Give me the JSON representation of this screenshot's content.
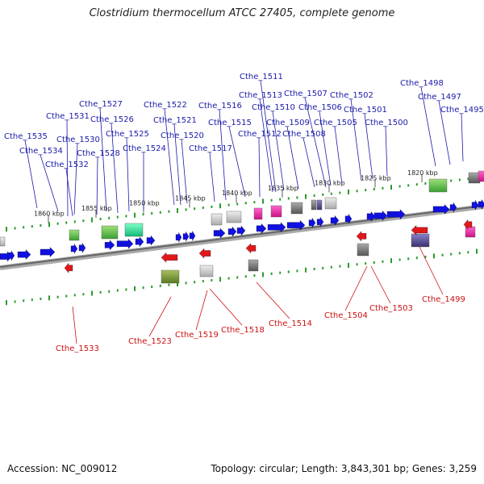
{
  "title": "Clostridium thermocellum ATCC 27405, complete genome",
  "footer": {
    "accession": "Accession: NC_009012",
    "topology": "Topology: circular; Length: 3,843,301 bp; Genes: 3,259"
  },
  "scale_labels": [
    "1860 kbp",
    "1855 kbp",
    "1850 kbp",
    "1845 kbp",
    "1840 kbp",
    "1835 kbp",
    "1830 kbp",
    "1825 kbp",
    "1820 kbp"
  ],
  "forward_labels": [
    "Cthe_1535",
    "Cthe_1534",
    "Cthe_1532",
    "Cthe_1531",
    "Cthe_1530",
    "Cthe_1528",
    "Cthe_1527",
    "Cthe_1526",
    "Cthe_1525",
    "Cthe_1524",
    "Cthe_1522",
    "Cthe_1521",
    "Cthe_1520",
    "Cthe_1517",
    "Cthe_1516",
    "Cthe_1515",
    "Cthe_1513",
    "Cthe_1512",
    "Cthe_1511",
    "Cthe_1510",
    "Cthe_1509",
    "Cthe_1508",
    "Cthe_1507",
    "Cthe_1506",
    "Cthe_1505",
    "Cthe_1502",
    "Cthe_1501",
    "Cthe_1500",
    "Cthe_1498",
    "Cthe_1497",
    "Cthe_1495"
  ],
  "reverse_labels": [
    "Cthe_1533",
    "Cthe_1523",
    "Cthe_1519",
    "Cthe_1518",
    "Cthe_1514",
    "Cthe_1504",
    "Cthe_1503",
    "Cthe_1499"
  ],
  "colors": {
    "forward_cds": "#1010e0",
    "reverse_cds": "#e01818",
    "forward_label": "#1a1aaa",
    "reverse_label": "#cc1111",
    "backbone": "#888888",
    "ticks": "#2a9a2a"
  }
}
